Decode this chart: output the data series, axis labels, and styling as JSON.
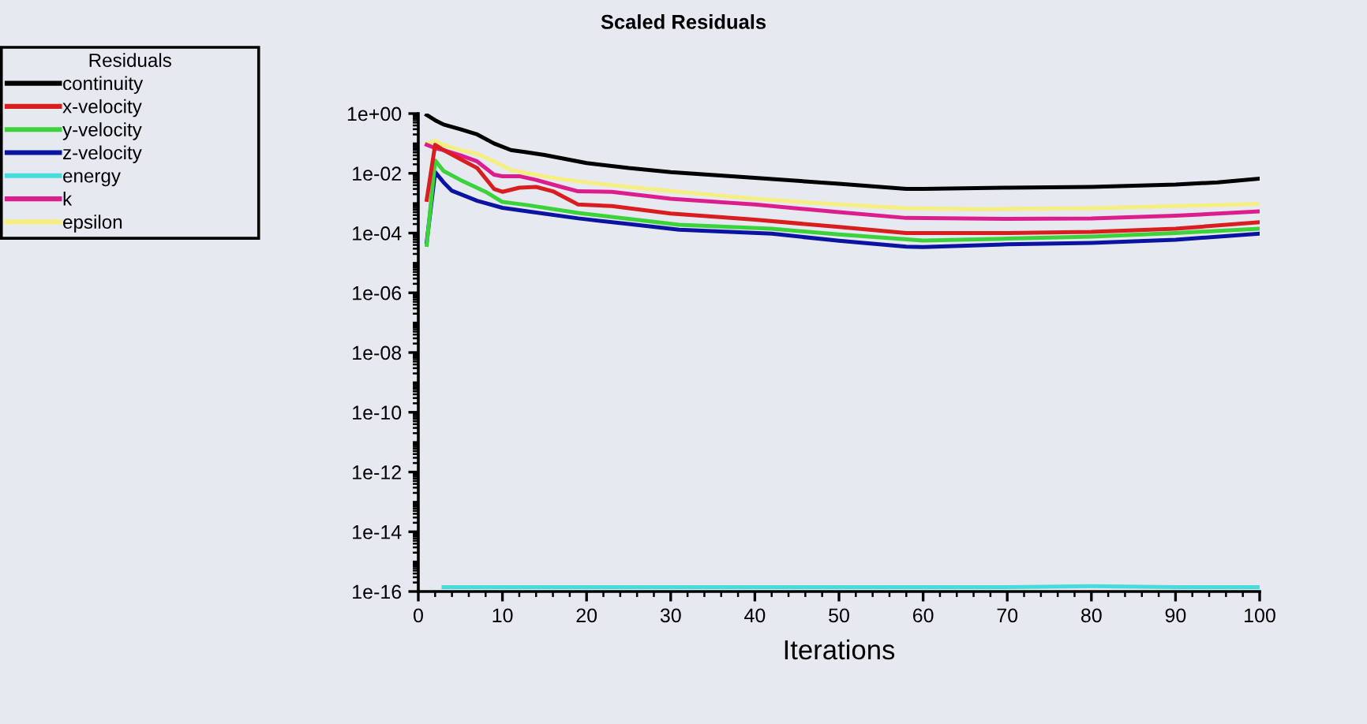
{
  "chart_data": {
    "type": "line",
    "title": "Scaled Residuals",
    "xlabel": "Iterations",
    "legend_title": "Residuals",
    "legend": "top left",
    "log": "y",
    "grid": false,
    "marker": "none",
    "line_style": "solid",
    "xlim": [
      0,
      100
    ],
    "xticks": [
      0,
      10,
      20,
      30,
      40,
      50,
      60,
      70,
      80,
      90,
      100
    ],
    "ylim": [
      1e-16,
      1
    ],
    "yticks": [
      {
        "value": 1e-16,
        "label": "1e-16"
      },
      {
        "value": 1e-14,
        "label": "1e-14"
      },
      {
        "value": 1e-12,
        "label": "1e-12"
      },
      {
        "value": 1e-10,
        "label": "1e-10"
      },
      {
        "value": 1e-08,
        "label": "1e-08"
      },
      {
        "value": 1e-06,
        "label": "1e-06"
      },
      {
        "value": 0.0001,
        "label": "1e-04"
      },
      {
        "value": 0.01,
        "label": "1e-02"
      },
      {
        "value": 1,
        "label": "1e+00"
      }
    ],
    "series": [
      {
        "name": "continuity",
        "color": "#000000",
        "x": [
          1,
          2,
          3,
          5,
          7,
          9,
          11,
          13,
          15,
          20,
          25,
          30,
          40,
          50,
          58,
          60,
          70,
          80,
          90,
          95,
          100
        ],
        "values": [
          0.9,
          0.6,
          0.43,
          0.3,
          0.2,
          0.1,
          0.06,
          0.05,
          0.041,
          0.022,
          0.015,
          0.011,
          0.007,
          0.0045,
          0.003,
          0.003,
          0.0033,
          0.0035,
          0.0042,
          0.005,
          0.0066
        ]
      },
      {
        "name": "x-velocity",
        "color": "#d81e1e",
        "x": [
          1,
          2,
          3,
          5,
          7,
          9,
          10,
          12,
          14,
          16,
          19,
          23,
          30,
          40,
          50,
          58,
          70,
          80,
          90,
          100
        ],
        "values": [
          0.0013,
          0.09,
          0.06,
          0.03,
          0.015,
          0.003,
          0.0024,
          0.0033,
          0.0035,
          0.0025,
          0.0009,
          0.0008,
          0.00045,
          0.00028,
          0.00016,
          0.0001,
          0.0001,
          0.00011,
          0.00014,
          0.00023
        ]
      },
      {
        "name": "y-velocity",
        "color": "#3cd23c",
        "x": [
          1,
          2,
          3,
          5,
          8,
          10,
          13,
          19,
          25,
          31,
          42,
          50,
          60,
          70,
          80,
          90,
          100
        ],
        "values": [
          4e-05,
          0.027,
          0.012,
          0.006,
          0.0024,
          0.0011,
          0.00086,
          0.00047,
          0.0003,
          0.00019,
          0.00014,
          9e-05,
          5.6e-05,
          6.5e-05,
          7.6e-05,
          0.0001,
          0.00014
        ]
      },
      {
        "name": "z-velocity",
        "color": "#0a14a0",
        "x": [
          1,
          2,
          3,
          4,
          7,
          10,
          13,
          19,
          25,
          31,
          42,
          50,
          58,
          60,
          70,
          80,
          90,
          100
        ],
        "values": [
          5e-05,
          0.011,
          0.005,
          0.0026,
          0.0012,
          0.0007,
          0.00053,
          0.00031,
          0.0002,
          0.00013,
          9.5e-05,
          5.5e-05,
          3.5e-05,
          3.4e-05,
          4.2e-05,
          4.7e-05,
          6e-05,
          9.5e-05
        ]
      },
      {
        "name": "energy",
        "color": "#46dcdc",
        "x": [
          3,
          10,
          20,
          30,
          40,
          50,
          60,
          70,
          80,
          90,
          100
        ],
        "values": [
          1.4e-16,
          1.4e-16,
          1.4e-16,
          1.4e-16,
          1.4e-16,
          1.4e-16,
          1.4e-16,
          1.4e-16,
          1.5e-16,
          1.4e-16,
          1.4e-16
        ]
      },
      {
        "name": "k",
        "color": "#dc1e8c",
        "x": [
          1,
          2,
          3,
          5,
          7,
          9,
          10,
          12,
          14,
          17,
          19,
          23,
          30,
          40,
          50,
          58,
          70,
          80,
          90,
          100
        ],
        "values": [
          0.09,
          0.07,
          0.06,
          0.04,
          0.025,
          0.009,
          0.008,
          0.008,
          0.006,
          0.0035,
          0.0025,
          0.0024,
          0.0014,
          0.0009,
          0.0005,
          0.00032,
          0.0003,
          0.00031,
          0.00038,
          0.00053
        ]
      },
      {
        "name": "epsilon",
        "color": "#f5ef82",
        "x": [
          1,
          2,
          3,
          5,
          7,
          9,
          11,
          13,
          16,
          19,
          25,
          31,
          40,
          50,
          58,
          67,
          80,
          90,
          100
        ],
        "values": [
          0.1,
          0.12,
          0.09,
          0.06,
          0.045,
          0.025,
          0.013,
          0.01,
          0.007,
          0.0054,
          0.0035,
          0.0024,
          0.0014,
          0.0009,
          0.00068,
          0.00063,
          0.00068,
          0.0008,
          0.00095
        ]
      }
    ]
  }
}
